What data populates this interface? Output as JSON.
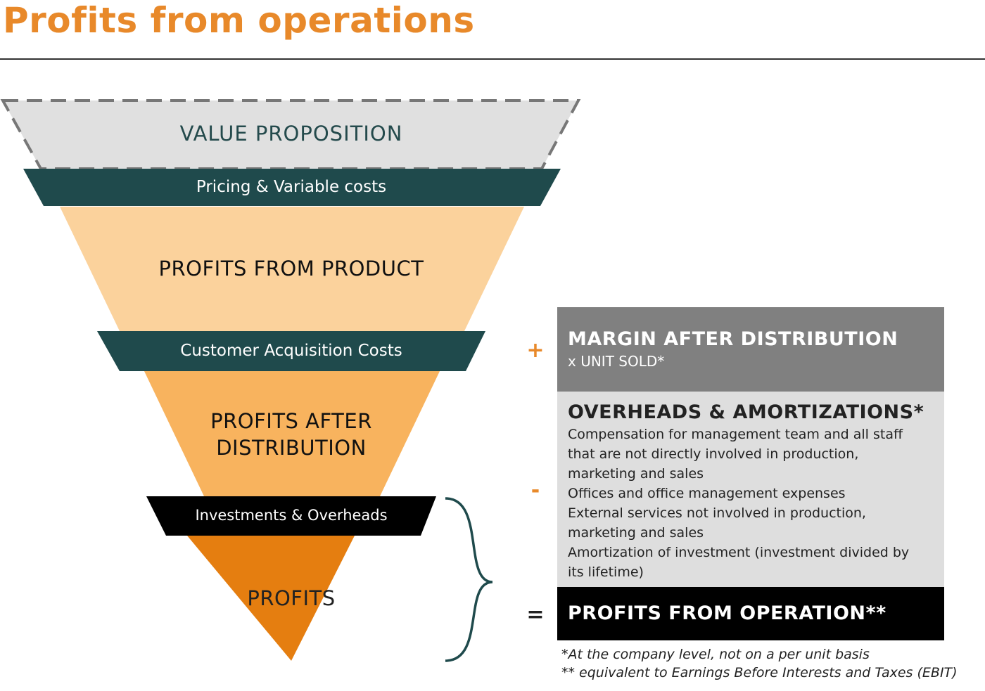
{
  "title": "Profits from operations",
  "funnel": {
    "value_proposition": "VALUE PROPOSITION",
    "band1": "Pricing & Variable costs",
    "profits_product": "PROFITS FROM PRODUCT",
    "band2": "Customer Acquisition Costs",
    "profits_distribution_line1": "PROFITS AFTER",
    "profits_distribution_line2": "DISTRIBUTION",
    "band3": "Investments & Overheads",
    "profits": "PROFITS"
  },
  "operators": {
    "plus": "+",
    "minus": "-",
    "equals": "="
  },
  "margin_box": {
    "heading": "MARGIN AFTER DISTRIBUTION",
    "sub": "x UNIT SOLD*"
  },
  "overheads_box": {
    "heading": "OVERHEADS & AMORTIZATIONS*",
    "items": [
      "Compensation for management team and all staff",
      "that are not directly involved in production,",
      "marketing and sales",
      "Offices and office management expenses",
      "External services not involved in production,",
      "marketing and sales",
      "Amortization of investment (investment divided by",
      "its lifetime)"
    ]
  },
  "result_box": {
    "heading": "PROFITS FROM OPERATION**"
  },
  "footnotes": {
    "note1": "*At the company level, not on a per unit basis",
    "note2": "** equivalent to Earnings Before Interests and Taxes (EBIT)"
  },
  "colors": {
    "accent": "#E8892A",
    "teal_band": "#1F4A4C",
    "black_band": "#000000",
    "value_prop_fill": "#E0E0E0",
    "product_fill": "#FBD29C",
    "distribution_fill": "#F8B35E",
    "profits_fill": "#E57E10",
    "margin_box": "#808080",
    "overheads_box": "#DEDEDE",
    "result_box": "#000000"
  }
}
